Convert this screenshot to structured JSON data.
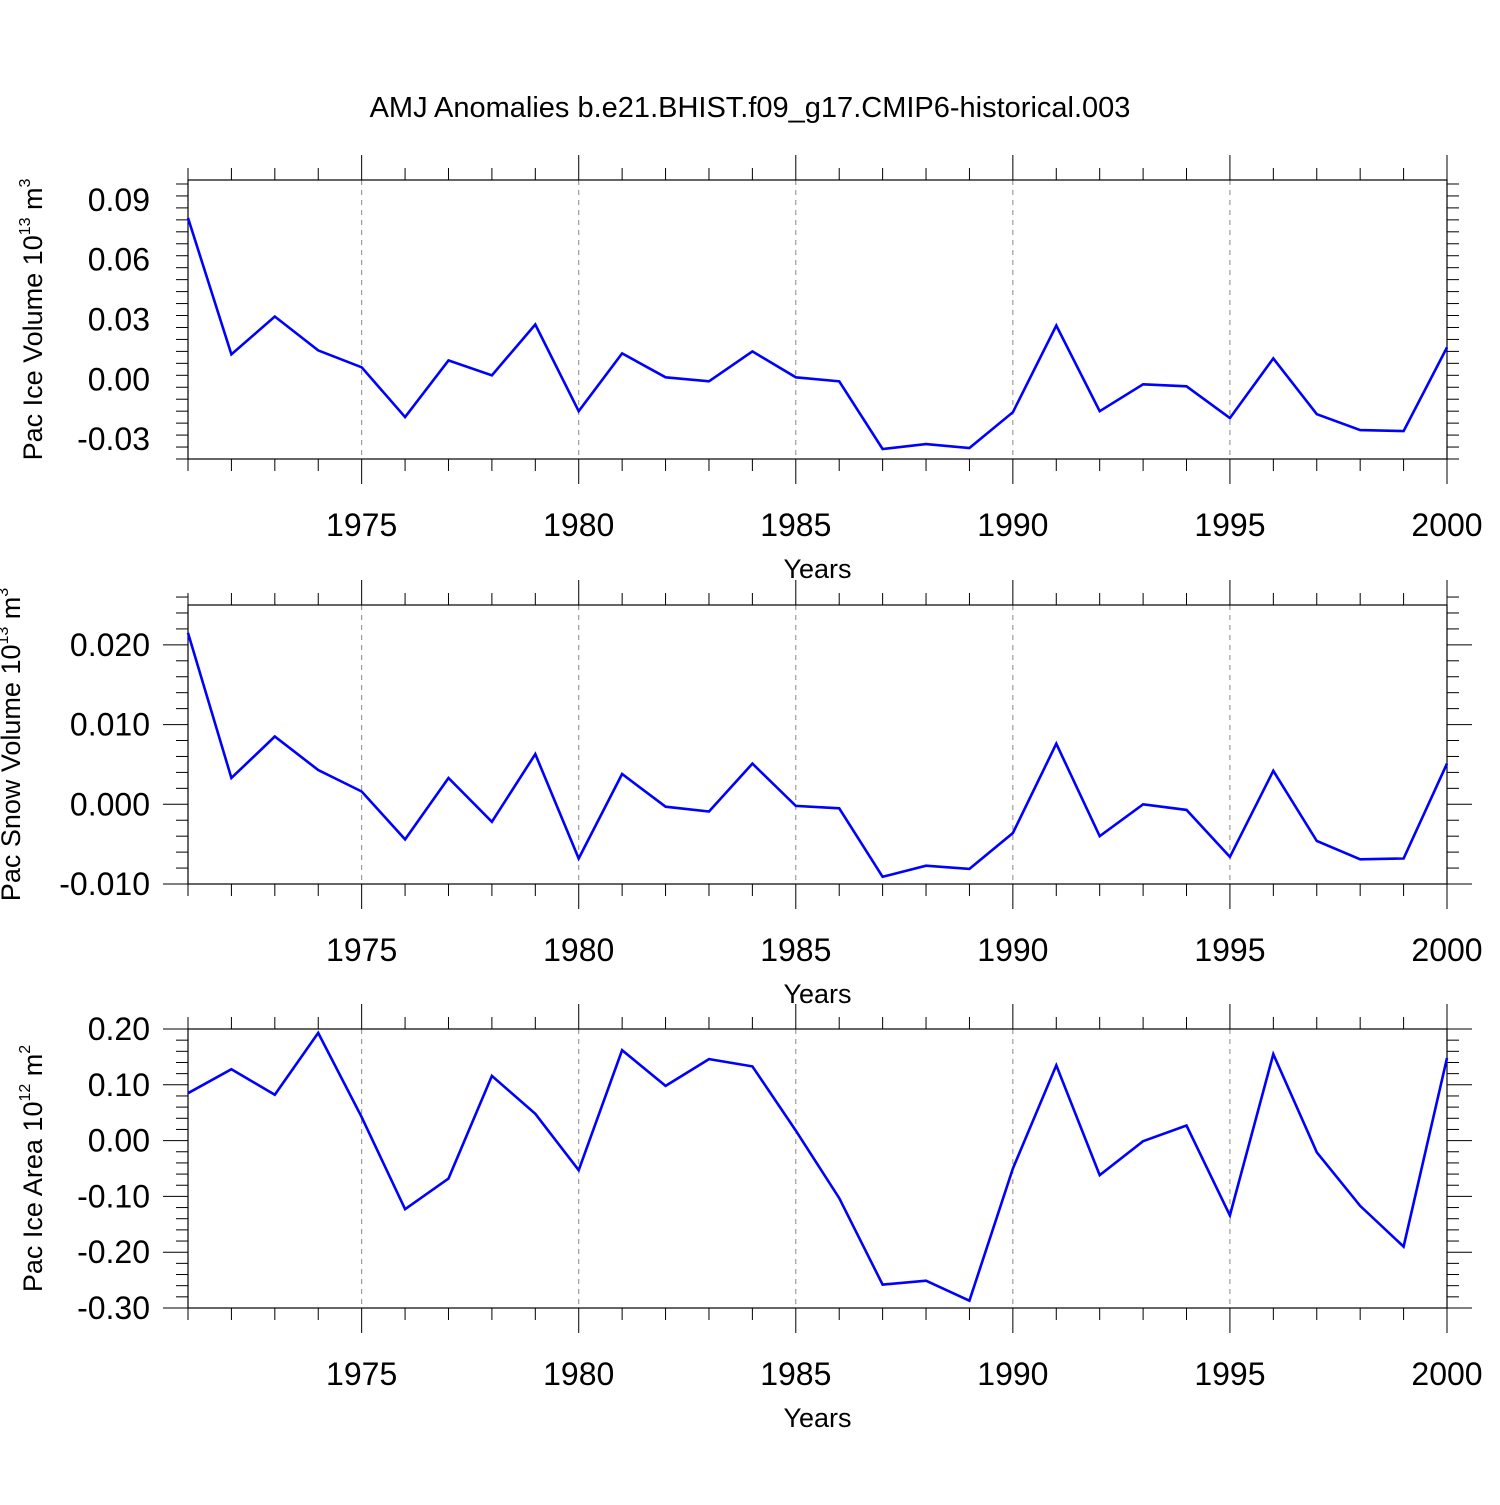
{
  "page_title": "AMJ Anomalies b.e21.BHIST.f09_g17.CMIP6-historical.003",
  "colors": {
    "line": "#0000ff",
    "axis": "#000000",
    "grid": "#888888"
  },
  "chart_data": [
    {
      "type": "line",
      "ylabel_main": "Pac Ice Volume 10",
      "ylabel_exp": "13",
      "ylabel_unit": " m",
      "ylabel_unit_exp": "3",
      "xlabel": "Years",
      "xlim": [
        1971,
        2000
      ],
      "ylim": [
        -0.04,
        0.1
      ],
      "yticks": [
        -0.03,
        0.0,
        0.03,
        0.06,
        0.09
      ],
      "ytick_labels": [
        "-0.03",
        "0.00",
        "0.03",
        "0.06",
        "0.09"
      ],
      "xticks": [
        1975,
        1980,
        1985,
        1990,
        1995,
        2000
      ],
      "xtick_labels": [
        "1975",
        "1980",
        "1985",
        "1990",
        "1995",
        "2000"
      ],
      "grid_x": [
        1975,
        1980,
        1985,
        1990,
        1995
      ],
      "series": [
        {
          "name": "Pac Ice Volume anomaly",
          "x": [
            1971,
            1972,
            1973,
            1974,
            1975,
            1976,
            1977,
            1978,
            1979,
            1980,
            1981,
            1982,
            1983,
            1984,
            1985,
            1986,
            1987,
            1988,
            1989,
            1990,
            1991,
            1992,
            1993,
            1994,
            1995,
            1996,
            1997,
            1998,
            1999,
            2000
          ],
          "values": [
            0.081,
            0.0125,
            0.0315,
            0.0145,
            0.006,
            -0.019,
            0.0095,
            0.002,
            0.0275,
            -0.016,
            0.013,
            0.001,
            -0.001,
            0.014,
            0.001,
            -0.001,
            -0.035,
            -0.0325,
            -0.0345,
            -0.0165,
            0.027,
            -0.016,
            -0.0025,
            -0.0035,
            -0.0195,
            0.0105,
            -0.0175,
            -0.0255,
            -0.026,
            0.016
          ]
        }
      ]
    },
    {
      "type": "line",
      "ylabel_main": "Pac Snow Volume 10",
      "ylabel_exp": "13",
      "ylabel_unit": " m",
      "ylabel_unit_exp": "3",
      "xlabel": "Years",
      "xlim": [
        1971,
        2000
      ],
      "ylim": [
        -0.01,
        0.025
      ],
      "yticks": [
        -0.01,
        0.0,
        0.01,
        0.02
      ],
      "ytick_labels": [
        "-0.010",
        "0.000",
        "0.010",
        "0.020"
      ],
      "xticks": [
        1975,
        1980,
        1985,
        1990,
        1995,
        2000
      ],
      "xtick_labels": [
        "1975",
        "1980",
        "1985",
        "1990",
        "1995",
        "2000"
      ],
      "grid_x": [
        1975,
        1980,
        1985,
        1990,
        1995
      ],
      "series": [
        {
          "name": "Pac Snow Volume anomaly",
          "x": [
            1971,
            1972,
            1973,
            1974,
            1975,
            1976,
            1977,
            1978,
            1979,
            1980,
            1981,
            1982,
            1983,
            1984,
            1985,
            1986,
            1987,
            1988,
            1989,
            1990,
            1991,
            1992,
            1993,
            1994,
            1995,
            1996,
            1997,
            1998,
            1999,
            2000
          ],
          "values": [
            0.0215,
            0.0033,
            0.0085,
            0.0043,
            0.0016,
            -0.0044,
            0.0033,
            -0.0022,
            0.0063,
            -0.0068,
            0.0038,
            -0.0003,
            -0.0009,
            0.0051,
            -0.0002,
            -0.0005,
            -0.0091,
            -0.0077,
            -0.0081,
            -0.0036,
            0.0076,
            -0.004,
            0.0,
            -0.0007,
            -0.0066,
            0.0042,
            -0.0046,
            -0.0069,
            -0.0068,
            0.0051
          ]
        }
      ]
    },
    {
      "type": "line",
      "ylabel_main": "Pac Ice Area 10",
      "ylabel_exp": "12",
      "ylabel_unit": " m",
      "ylabel_unit_exp": "2",
      "xlabel": "Years",
      "xlim": [
        1971,
        2000
      ],
      "ylim": [
        -0.3,
        0.2
      ],
      "yticks": [
        -0.3,
        -0.2,
        -0.1,
        0.0,
        0.1,
        0.2
      ],
      "ytick_labels": [
        "-0.30",
        "-0.20",
        "-0.10",
        "0.00",
        "0.10",
        "0.20"
      ],
      "xticks": [
        1975,
        1980,
        1985,
        1990,
        1995,
        2000
      ],
      "xtick_labels": [
        "1975",
        "1980",
        "1985",
        "1990",
        "1995",
        "2000"
      ],
      "grid_x": [
        1975,
        1980,
        1985,
        1990,
        1995
      ],
      "series": [
        {
          "name": "Pac Ice Area anomaly",
          "x": [
            1971,
            1972,
            1973,
            1974,
            1975,
            1976,
            1977,
            1978,
            1979,
            1980,
            1981,
            1982,
            1983,
            1984,
            1985,
            1986,
            1987,
            1988,
            1989,
            1990,
            1991,
            1992,
            1993,
            1994,
            1995,
            1996,
            1997,
            1998,
            1999,
            2000
          ],
          "values": [
            0.085,
            0.128,
            0.082,
            0.193,
            0.042,
            -0.123,
            -0.068,
            0.116,
            0.048,
            -0.053,
            0.162,
            0.098,
            0.146,
            0.133,
            0.018,
            -0.103,
            -0.258,
            -0.251,
            -0.287,
            -0.05,
            0.135,
            -0.062,
            -0.001,
            0.027,
            -0.134,
            0.155,
            -0.021,
            -0.117,
            -0.19,
            0.148
          ]
        }
      ]
    }
  ]
}
